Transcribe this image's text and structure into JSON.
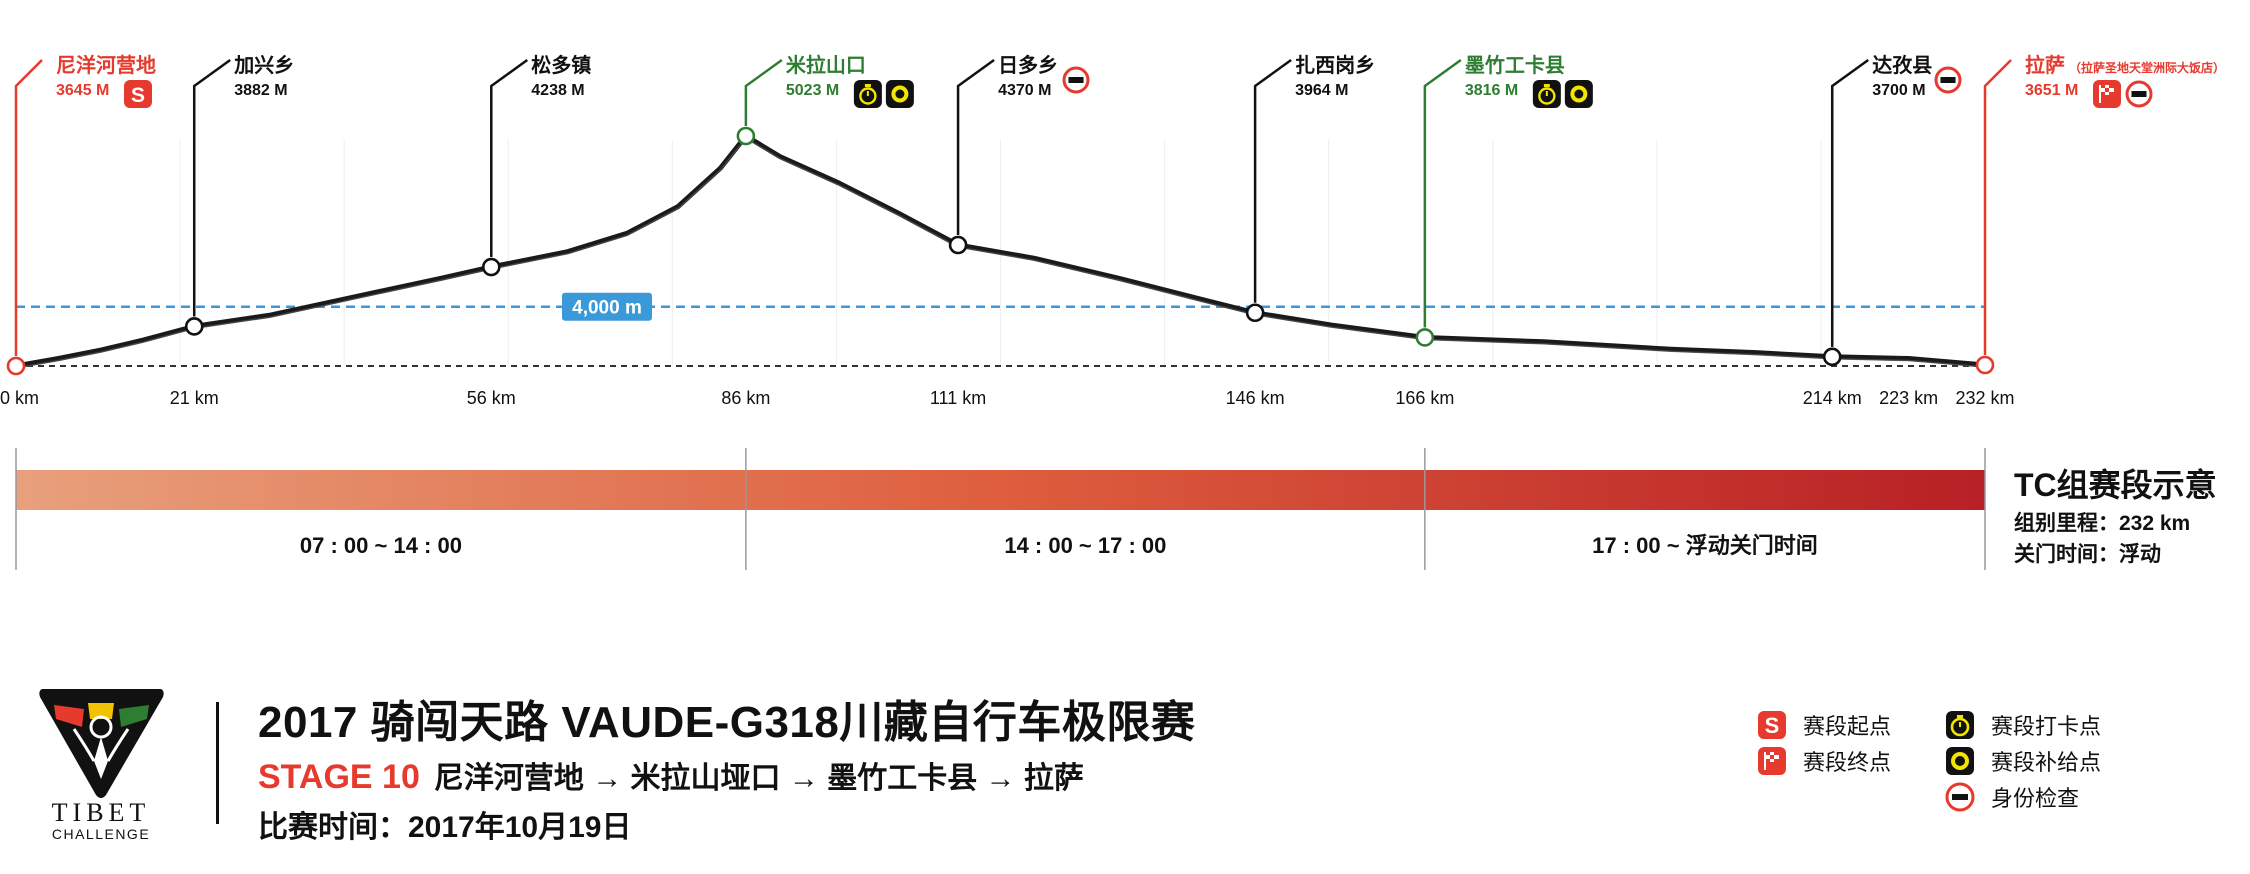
{
  "chart_data": {
    "type": "area",
    "xlabel": "",
    "ylabel": "",
    "x_unit": "km",
    "xlim": [
      0,
      232
    ],
    "ylim": [
      3500,
      5200
    ],
    "reference_line": {
      "value": 4000,
      "label": "4,000 m"
    },
    "profile": [
      [
        0,
        3645
      ],
      [
        5,
        3690
      ],
      [
        10,
        3740
      ],
      [
        15,
        3800
      ],
      [
        21,
        3882
      ],
      [
        30,
        3950
      ],
      [
        40,
        4060
      ],
      [
        50,
        4170
      ],
      [
        56,
        4238
      ],
      [
        65,
        4330
      ],
      [
        72,
        4440
      ],
      [
        78,
        4600
      ],
      [
        83,
        4830
      ],
      [
        86,
        5023
      ],
      [
        90,
        4900
      ],
      [
        97,
        4740
      ],
      [
        104,
        4560
      ],
      [
        111,
        4370
      ],
      [
        120,
        4290
      ],
      [
        130,
        4170
      ],
      [
        140,
        4040
      ],
      [
        146,
        3964
      ],
      [
        155,
        3890
      ],
      [
        166,
        3816
      ],
      [
        180,
        3790
      ],
      [
        195,
        3745
      ],
      [
        205,
        3725
      ],
      [
        214,
        3700
      ],
      [
        223,
        3690
      ],
      [
        232,
        3651
      ]
    ],
    "x_ticks": [
      "0 km",
      "21 km",
      "56 km",
      "86 km",
      "111 km",
      "146 km",
      "166 km",
      "214 km",
      "223 km",
      "232 km"
    ],
    "x_tick_values": [
      0,
      21,
      56,
      86,
      111,
      146,
      166,
      214,
      223,
      232
    ],
    "waypoints": [
      {
        "name": "尼洋河营地",
        "alt_label": "3645 M",
        "km": 0,
        "alt": 3645,
        "color": "#e53a2d",
        "icons": [
          "stage-start-icon"
        ]
      },
      {
        "name": "加兴乡",
        "alt_label": "3882 M",
        "km": 21,
        "alt": 3882,
        "color": "#111111",
        "icons": []
      },
      {
        "name": "松多镇",
        "alt_label": "4238 M",
        "km": 56,
        "alt": 4238,
        "color": "#111111",
        "icons": []
      },
      {
        "name": "米拉山口",
        "alt_label": "5023 M",
        "km": 86,
        "alt": 5023,
        "color": "#2e7d32",
        "icons": [
          "checkpoint-icon",
          "supply-icon"
        ]
      },
      {
        "name": "日多乡",
        "alt_label": "4370 M",
        "km": 111,
        "alt": 4370,
        "color": "#111111",
        "icons": [
          "id-check-icon"
        ]
      },
      {
        "name": "扎西岗乡",
        "alt_label": "3964 M",
        "km": 146,
        "alt": 3964,
        "color": "#111111",
        "icons": []
      },
      {
        "name": "墨竹工卡县",
        "alt_label": "3816 M",
        "km": 166,
        "alt": 3816,
        "color": "#2e7d32",
        "icons": [
          "checkpoint-icon",
          "supply-icon"
        ]
      },
      {
        "name": "达孜县",
        "alt_label": "3700 M",
        "km": 214,
        "alt": 3700,
        "color": "#111111",
        "icons": [
          "id-check-icon"
        ]
      },
      {
        "name": "拉萨",
        "name_note": "（拉萨圣地天堂洲际大饭店）",
        "alt_label": "3651 M",
        "km": 232,
        "alt": 3651,
        "color": "#e53a2d",
        "icons": [
          "stage-finish-icon",
          "id-check-icon"
        ]
      }
    ],
    "time_segments": [
      {
        "from_km": 0,
        "to_km": 86,
        "label": "07 : 00 ~ 14 : 00"
      },
      {
        "from_km": 86,
        "to_km": 166,
        "label": "14 : 00 ~ 17 : 00"
      },
      {
        "from_km": 166,
        "to_km": 232,
        "label": "17 : 00 ~ 浮动关门时间"
      }
    ],
    "colors": {
      "start": "#e8a07c",
      "mid": "#de5e3e",
      "end": "#b82025",
      "ref": "#3a9ad9"
    }
  },
  "side": {
    "title": "TC组赛段示意",
    "distance": "组别里程：232 km",
    "close_time": "关门时间：浮动"
  },
  "footer": {
    "title": "2017 骑闯天路 VAUDE-G318川藏自行车极限赛",
    "stage_label": "STAGE 10",
    "route": "尼洋河营地 → 米拉山垭口 → 墨竹工卡县 → 拉萨",
    "date": "比赛时间：2017年10月19日",
    "logo_text": "TIBET",
    "logo_subtext": "CHALLENGE",
    "id_badge_text": "身份"
  },
  "legend": [
    {
      "icon": "stage-start-icon",
      "label": "赛段起点"
    },
    {
      "icon": "stage-finish-icon",
      "label": "赛段终点"
    },
    {
      "icon": "checkpoint-icon",
      "label": "赛段打卡点"
    },
    {
      "icon": "supply-icon",
      "label": "赛段补给点"
    },
    {
      "icon": "id-check-icon",
      "label": "身份检查"
    }
  ]
}
